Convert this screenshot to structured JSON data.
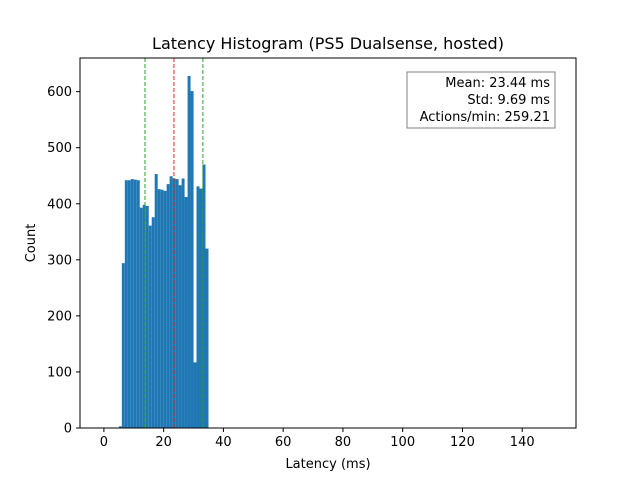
{
  "chart_data": {
    "type": "bar",
    "title": "Latency Histogram (PS5 Dualsense, hosted)",
    "xlabel": "Latency (ms)",
    "ylabel": "Count",
    "xlim": [
      -8,
      158
    ],
    "ylim": [
      0,
      660
    ],
    "xticks": [
      0,
      20,
      40,
      60,
      80,
      100,
      120,
      140
    ],
    "yticks": [
      0,
      100,
      200,
      300,
      400,
      500,
      600
    ],
    "bar_color": "#1f77b4",
    "bin_width": 1.0,
    "bins": [
      {
        "start": 5,
        "value": 3
      },
      {
        "start": 6,
        "value": 294
      },
      {
        "start": 7,
        "value": 442
      },
      {
        "start": 8,
        "value": 442
      },
      {
        "start": 9,
        "value": 444
      },
      {
        "start": 10,
        "value": 443
      },
      {
        "start": 11,
        "value": 442
      },
      {
        "start": 12,
        "value": 393
      },
      {
        "start": 13,
        "value": 398
      },
      {
        "start": 14,
        "value": 396
      },
      {
        "start": 15,
        "value": 361
      },
      {
        "start": 16,
        "value": 376
      },
      {
        "start": 17,
        "value": 453
      },
      {
        "start": 18,
        "value": 426
      },
      {
        "start": 19,
        "value": 425
      },
      {
        "start": 20,
        "value": 423
      },
      {
        "start": 21,
        "value": 435
      },
      {
        "start": 22,
        "value": 449
      },
      {
        "start": 23,
        "value": 445
      },
      {
        "start": 24,
        "value": 444
      },
      {
        "start": 25,
        "value": 433
      },
      {
        "start": 26,
        "value": 445
      },
      {
        "start": 27,
        "value": 412
      },
      {
        "start": 28,
        "value": 628
      },
      {
        "start": 29,
        "value": 601
      },
      {
        "start": 30,
        "value": 117
      },
      {
        "start": 31,
        "value": 431
      },
      {
        "start": 32,
        "value": 427
      },
      {
        "start": 33,
        "value": 470
      },
      {
        "start": 34,
        "value": 320
      }
    ],
    "reference_lines": [
      {
        "x": 23.44,
        "color": "#d62728",
        "style": "dashed"
      },
      {
        "x": 13.75,
        "color": "#2ca02c",
        "style": "dashed"
      },
      {
        "x": 33.13,
        "color": "#2ca02c",
        "style": "dashed"
      }
    ],
    "annotation": {
      "position": "top-right",
      "lines": [
        "Mean: 23.44 ms",
        "Std: 9.69 ms",
        "Actions/min: 259.21"
      ]
    },
    "grid": false,
    "legend": "none"
  }
}
